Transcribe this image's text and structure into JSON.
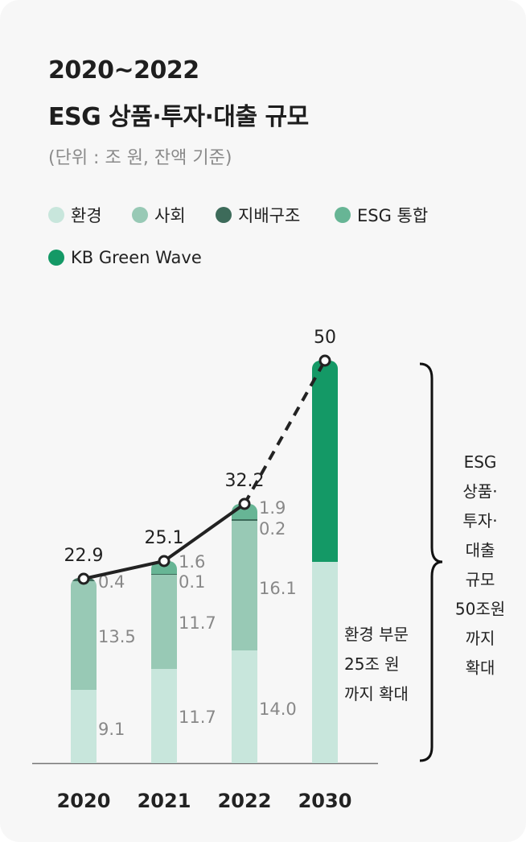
{
  "header": {
    "title_line1": "2020~2022",
    "title_line2": "ESG 상품·투자·대출 규모",
    "unit": "(단위 : 조 원, 잔액 기준)"
  },
  "chart_data": {
    "type": "bar",
    "stacked": true,
    "categories": [
      "2020",
      "2021",
      "2022",
      "2030"
    ],
    "ylim": [
      0,
      50
    ],
    "grid": false,
    "legend_placement": "top",
    "series": [
      {
        "name": "환경",
        "color": "#c8e6dc",
        "values": [
          9.1,
          11.7,
          14.0,
          25
        ]
      },
      {
        "name": "사회",
        "color": "#98c9b5",
        "values": [
          13.5,
          11.7,
          16.1,
          0
        ]
      },
      {
        "name": "지배구조",
        "color": "#3d6b5a",
        "values": [
          0.4,
          0.1,
          0.2,
          0
        ]
      },
      {
        "name": "ESG 통합",
        "color": "#67b595",
        "values": [
          0,
          1.6,
          1.9,
          0
        ]
      },
      {
        "name": "KB Green Wave",
        "color": "#149966",
        "values": [
          0,
          0,
          0,
          25
        ]
      }
    ],
    "segment_labels": [
      [
        "9.1",
        "13.5",
        "0.4",
        "",
        ""
      ],
      [
        "11.7",
        "11.7",
        "0.1",
        "1.6",
        ""
      ],
      [
        "14.0",
        "16.1",
        "0.2",
        "1.9",
        ""
      ],
      [
        "",
        "",
        "",
        "",
        ""
      ]
    ],
    "totals": [
      22.9,
      25.1,
      32.2,
      50
    ],
    "total_labels": [
      "22.9",
      "25.1",
      "32.2",
      "50"
    ],
    "line": {
      "color": "#222222",
      "dashed_last_segment": true
    },
    "annotations": {
      "environment": [
        "환경 부문",
        "25조 원",
        "까지 확대"
      ],
      "target": [
        "ESG",
        "상품·",
        "투자·",
        "대출",
        "규모",
        "50조원",
        "까지",
        "확대"
      ]
    }
  }
}
